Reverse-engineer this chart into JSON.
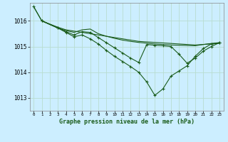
{
  "title": "Graphe pression niveau de la mer (hPa)",
  "background_color": "#cceeff",
  "grid_color": "#b8ddd0",
  "line_color": "#1a5c1a",
  "xlim": [
    -0.5,
    23.5
  ],
  "ylim": [
    1012.5,
    1016.7
  ],
  "yticks": [
    1013,
    1014,
    1015,
    1016
  ],
  "xticks": [
    0,
    1,
    2,
    3,
    4,
    5,
    6,
    7,
    8,
    9,
    10,
    11,
    12,
    13,
    14,
    15,
    16,
    17,
    18,
    19,
    20,
    21,
    22,
    23
  ],
  "series": [
    {
      "x": [
        0,
        1,
        3,
        4,
        5,
        6,
        7,
        8,
        9,
        10,
        11,
        12,
        13,
        14,
        15,
        16,
        17,
        18,
        19,
        20,
        21,
        22,
        23
      ],
      "y": [
        1016.55,
        1016.0,
        1015.75,
        1015.65,
        1015.6,
        1015.55,
        1015.5,
        1015.45,
        1015.4,
        1015.35,
        1015.3,
        1015.25,
        1015.2,
        1015.18,
        1015.16,
        1015.14,
        1015.12,
        1015.1,
        1015.08,
        1015.06,
        1015.08,
        1015.1,
        1015.12
      ],
      "markers": false
    },
    {
      "x": [
        1,
        3,
        4,
        5,
        6,
        7,
        8,
        9,
        10,
        11,
        12,
        13,
        14,
        15,
        16,
        17,
        18,
        19,
        20,
        21,
        22,
        23
      ],
      "y": [
        1016.0,
        1015.72,
        1015.62,
        1015.55,
        1015.65,
        1015.68,
        1015.5,
        1015.4,
        1015.32,
        1015.25,
        1015.2,
        1015.16,
        1015.13,
        1015.1,
        1015.08,
        1015.06,
        1015.05,
        1015.04,
        1015.03,
        1015.08,
        1015.12,
        1015.15
      ],
      "markers": false
    },
    {
      "x": [
        1,
        3,
        4,
        5,
        6,
        7,
        8,
        9,
        10,
        11,
        12,
        13,
        14,
        15,
        16,
        17,
        18,
        19,
        20,
        21,
        22,
        23
      ],
      "y": [
        1016.0,
        1015.72,
        1015.58,
        1015.45,
        1015.58,
        1015.55,
        1015.35,
        1015.15,
        1014.95,
        1014.75,
        1014.55,
        1014.38,
        1015.08,
        1015.05,
        1015.03,
        1015.0,
        1014.7,
        1014.35,
        1014.55,
        1014.82,
        1015.0,
        1015.15
      ],
      "markers": true
    },
    {
      "x": [
        0,
        1,
        3,
        4,
        5,
        6,
        7,
        8,
        9,
        10,
        11,
        12,
        13,
        14,
        15,
        16,
        17,
        18,
        19,
        20,
        21,
        22,
        23
      ],
      "y": [
        1016.55,
        1016.0,
        1015.72,
        1015.55,
        1015.38,
        1015.45,
        1015.3,
        1015.1,
        1014.85,
        1014.62,
        1014.42,
        1014.22,
        1014.0,
        1013.62,
        1013.1,
        1013.35,
        1013.85,
        1014.05,
        1014.25,
        1014.62,
        1014.92,
        1015.1,
        1015.15
      ],
      "markers": true
    }
  ]
}
